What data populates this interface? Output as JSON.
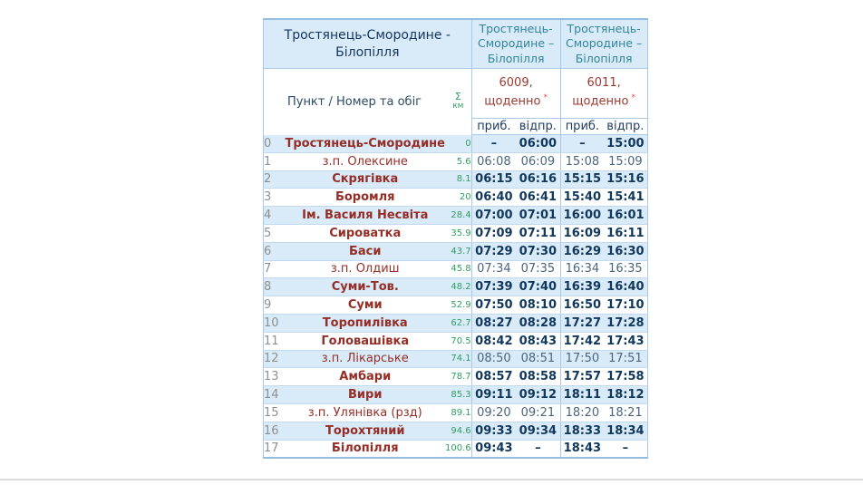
{
  "colors": {
    "header_bg": "#d9eaf8",
    "row_shaded_bg": "#d9eaf8",
    "border_blue": "#aac9e4",
    "outer_border_blue": "#94bede",
    "title_navy": "#14355f",
    "direction_teal": "#31859c",
    "station_maroon": "#952e27",
    "train_maroon": "#9c3a32",
    "km_green": "#2f9e62",
    "note_red": "#e04747",
    "row_number_gray": "#8f8f8f",
    "time_navy_bold": "#10375c",
    "time_gray_blue": "#4a6580",
    "page_divider_gray": "#dcdcdc"
  },
  "table": {
    "title": "Тростянець-Смородине - Білопілля",
    "corner": {
      "label": "Пункт / Номер та обіг",
      "sum_symbol": "Σ",
      "km_label": "км"
    },
    "trains": [
      {
        "direction": "Тростянець-Смородине – Білопілля",
        "number": "6009,",
        "frequency": "щоденно",
        "note_mark": "*",
        "arr_label": "приб.",
        "dep_label": "відпр."
      },
      {
        "direction": "Тростянець-Смородине – Білопілля",
        "number": "6011,",
        "frequency": "щоденно",
        "note_mark": "*",
        "arr_label": "приб.",
        "dep_label": "відпр."
      }
    ],
    "rows": [
      {
        "num": "0",
        "station": "Тростянець-Смородине",
        "km": "0",
        "major": true,
        "times": [
          "–",
          "06:00",
          "–",
          "15:00"
        ]
      },
      {
        "num": "1",
        "station": "з.п. Олексине",
        "km": "5.6",
        "major": false,
        "times": [
          "06:08",
          "06:09",
          "15:08",
          "15:09"
        ]
      },
      {
        "num": "2",
        "station": "Скрягівка",
        "km": "8.1",
        "major": true,
        "times": [
          "06:15",
          "06:16",
          "15:15",
          "15:16"
        ]
      },
      {
        "num": "3",
        "station": "Боромля",
        "km": "20",
        "major": true,
        "times": [
          "06:40",
          "06:41",
          "15:40",
          "15:41"
        ]
      },
      {
        "num": "4",
        "station": "Ім. Василя Несвіта",
        "km": "28.4",
        "major": true,
        "times": [
          "07:00",
          "07:01",
          "16:00",
          "16:01"
        ]
      },
      {
        "num": "5",
        "station": "Сироватка",
        "km": "35.9",
        "major": true,
        "times": [
          "07:09",
          "07:11",
          "16:09",
          "16:11"
        ]
      },
      {
        "num": "6",
        "station": "Баси",
        "km": "43.7",
        "major": true,
        "times": [
          "07:29",
          "07:30",
          "16:29",
          "16:30"
        ]
      },
      {
        "num": "7",
        "station": "з.п. Олдиш",
        "km": "45.8",
        "major": false,
        "times": [
          "07:34",
          "07:35",
          "16:34",
          "16:35"
        ]
      },
      {
        "num": "8",
        "station": "Суми-Тов.",
        "km": "48.2",
        "major": true,
        "times": [
          "07:39",
          "07:40",
          "16:39",
          "16:40"
        ]
      },
      {
        "num": "9",
        "station": "Суми",
        "km": "52.9",
        "major": true,
        "times": [
          "07:50",
          "08:10",
          "16:50",
          "17:10"
        ]
      },
      {
        "num": "10",
        "station": "Торопилівка",
        "km": "62.7",
        "major": true,
        "times": [
          "08:27",
          "08:28",
          "17:27",
          "17:28"
        ]
      },
      {
        "num": "11",
        "station": "Головашівка",
        "km": "70.5",
        "major": true,
        "times": [
          "08:42",
          "08:43",
          "17:42",
          "17:43"
        ]
      },
      {
        "num": "12",
        "station": "з.п. Лікарське",
        "km": "74.1",
        "major": false,
        "times": [
          "08:50",
          "08:51",
          "17:50",
          "17:51"
        ]
      },
      {
        "num": "13",
        "station": "Амбари",
        "km": "78.7",
        "major": true,
        "times": [
          "08:57",
          "08:58",
          "17:57",
          "17:58"
        ]
      },
      {
        "num": "14",
        "station": "Вири",
        "km": "85.3",
        "major": true,
        "times": [
          "09:11",
          "09:12",
          "18:11",
          "18:12"
        ]
      },
      {
        "num": "15",
        "station": "з.п. Улянівка (рзд)",
        "km": "89.1",
        "major": false,
        "times": [
          "09:20",
          "09:21",
          "18:20",
          "18:21"
        ]
      },
      {
        "num": "16",
        "station": "Торохтяний",
        "km": "94.6",
        "major": true,
        "times": [
          "09:33",
          "09:34",
          "18:33",
          "18:34"
        ]
      },
      {
        "num": "17",
        "station": "Білопілля",
        "km": "100.6",
        "major": true,
        "times": [
          "09:43",
          "–",
          "18:43",
          "–"
        ]
      }
    ]
  }
}
